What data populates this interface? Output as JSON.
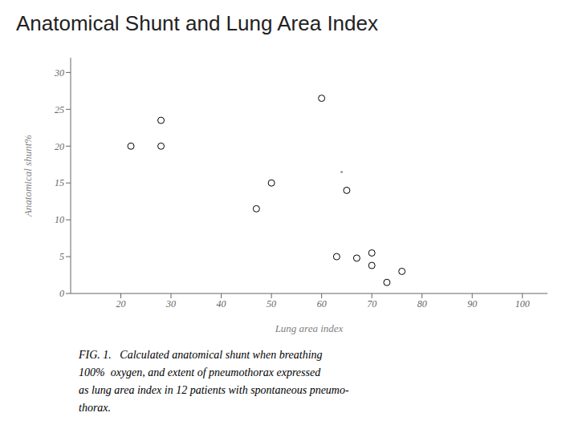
{
  "chart_data": {
    "type": "scatter",
    "title": "Anatomical Shunt and Lung Area Index",
    "xlabel": "Lung area index",
    "ylabel": "Anatomical shunt%",
    "series": [
      {
        "color": "#000000",
        "marker": "circle",
        "x": [
          22,
          28,
          28,
          47,
          50,
          60,
          63,
          65,
          67,
          70,
          70,
          73,
          76
        ],
        "y": [
          20,
          23.5,
          20,
          11.5,
          15,
          26.5,
          5.0,
          14,
          4.8,
          5.5,
          3.8,
          1.5,
          3.0
        ]
      },
      {
        "color": "#999999",
        "marker": "point",
        "x": [
          64
        ],
        "y": [
          16.5
        ]
      }
    ],
    "xlim": [
      10,
      105
    ],
    "ylim": [
      0,
      32
    ],
    "xticks": [
      20,
      30,
      40,
      50,
      60,
      70,
      80,
      90,
      100
    ],
    "yticks": [
      0,
      5,
      10,
      15,
      20,
      25,
      30
    ],
    "grid": false,
    "caption": [
      "FIG. 1.   Calculated anatomical shunt when breathing",
      "100%  oxygen, and extent of pneumothorax expressed",
      "as lung area index in 12 patients with spontaneous pneumo-",
      "thorax."
    ]
  }
}
